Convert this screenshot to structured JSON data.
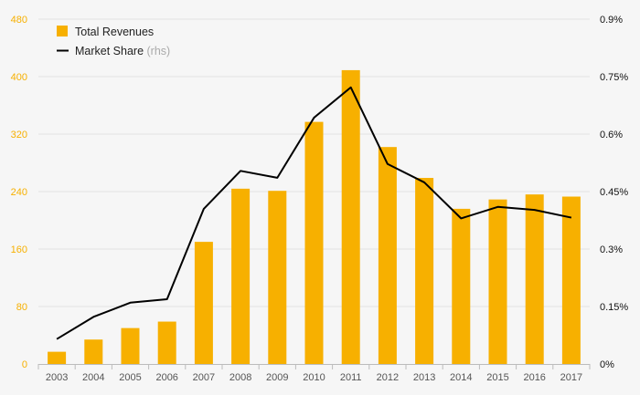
{
  "chart_data": {
    "type": "bar",
    "categories": [
      "2003",
      "2004",
      "2005",
      "2006",
      "2007",
      "2008",
      "2009",
      "2010",
      "2011",
      "2012",
      "2013",
      "2014",
      "2015",
      "2016",
      "2017"
    ],
    "series": [
      {
        "name": "Total Revenues",
        "kind": "bar",
        "axis": "left",
        "color": "#f7b000",
        "values": [
          17,
          34,
          50,
          59,
          170,
          244,
          241,
          337,
          409,
          302,
          259,
          216,
          229,
          236,
          233
        ]
      },
      {
        "name": "Market Share",
        "kind": "line",
        "axis": "right",
        "color": "#000000",
        "values": [
          0.065,
          0.123,
          0.16,
          0.169,
          0.405,
          0.504,
          0.486,
          0.643,
          0.722,
          0.522,
          0.474,
          0.38,
          0.41,
          0.402,
          0.382
        ]
      }
    ],
    "legend": {
      "placement": "top-left",
      "items": [
        {
          "label": "Total Revenues",
          "suffix": ""
        },
        {
          "label": "Market Share",
          "suffix": "(rhs)"
        }
      ]
    },
    "y_left": {
      "ylim": [
        0,
        480
      ],
      "ticks": [
        "0",
        "80",
        "160",
        "240",
        "320",
        "400",
        "480"
      ],
      "tick_values": [
        0,
        80,
        160,
        240,
        320,
        400,
        480
      ],
      "color": "#f7b000"
    },
    "y_right": {
      "ylim": [
        0,
        0.9
      ],
      "ticks": [
        "0%",
        "0.15%",
        "0.3%",
        "0.45%",
        "0.6%",
        "0.75%",
        "0.9%"
      ],
      "tick_values": [
        0,
        0.15,
        0.3,
        0.45,
        0.6,
        0.75,
        0.9
      ]
    },
    "grid": true
  }
}
